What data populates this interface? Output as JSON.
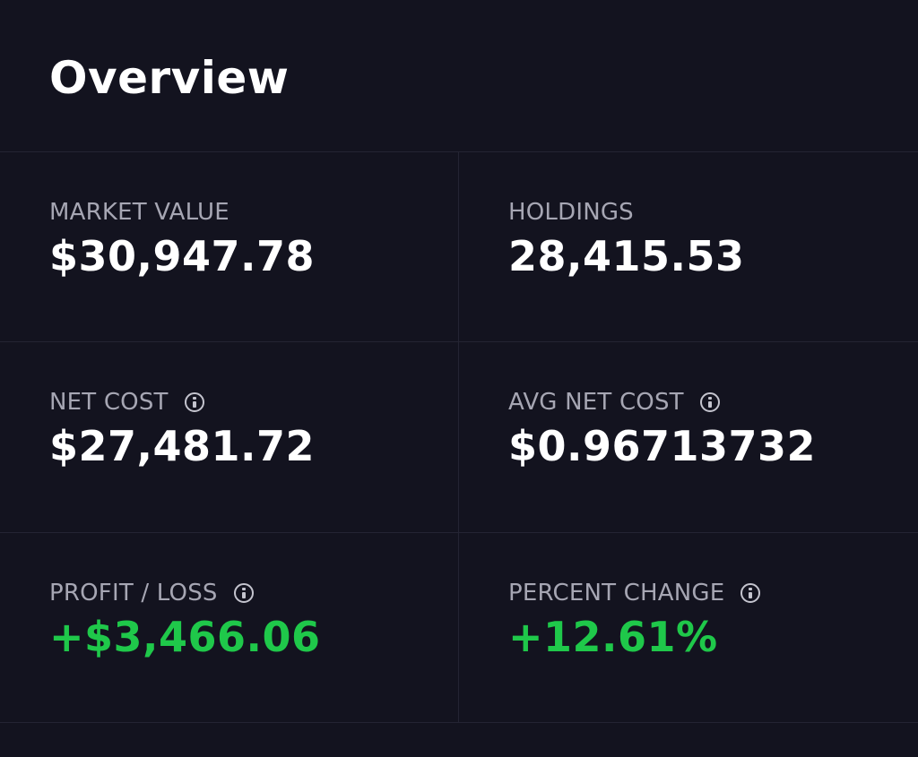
{
  "header": {
    "title": "Overview"
  },
  "stats": [
    {
      "label": "MARKET VALUE",
      "value": "$30,947.78",
      "has_info": false
    },
    {
      "label": "HOLDINGS",
      "value": "28,415.53",
      "has_info": false
    },
    {
      "label": "NET COST",
      "value": "$27,481.72",
      "has_info": true,
      "icon": "info-icon"
    },
    {
      "label": "AVG NET COST",
      "value": "$0.96713732",
      "has_info": true,
      "icon": "info-icon"
    },
    {
      "label": "PROFIT / LOSS",
      "value": "+$3,466.06",
      "has_info": true,
      "icon": "info-icon",
      "status": "positive"
    },
    {
      "label": "PERCENT CHANGE",
      "value": "+12.61%",
      "has_info": true,
      "icon": "info-icon",
      "status": "positive"
    }
  ],
  "colors": {
    "background": "#13131f",
    "divider": "#242433",
    "label": "#a6a6b3",
    "value": "#ffffff",
    "positive": "#1fc84a"
  }
}
